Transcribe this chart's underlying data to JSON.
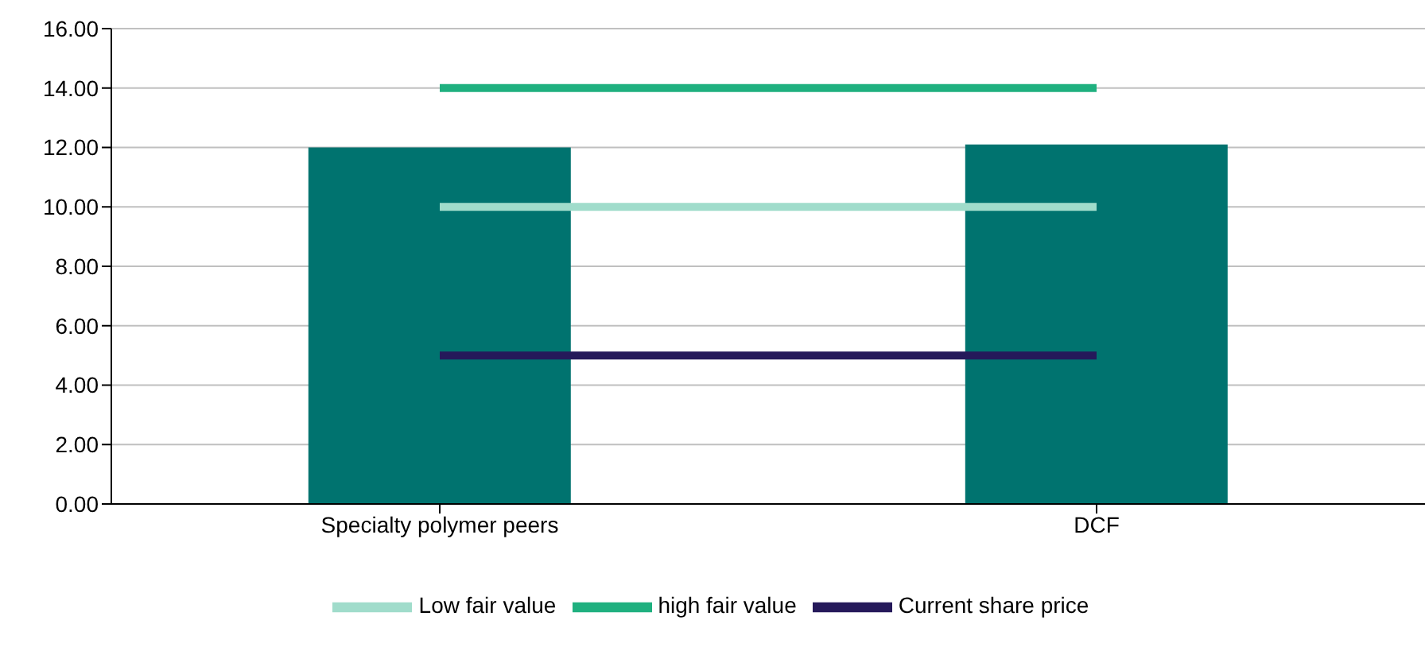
{
  "chart_data": {
    "type": "bar",
    "categories": [
      "Specialty polymer peers",
      "DCF"
    ],
    "series": [
      {
        "color": "#00736f",
        "values": [
          12.0,
          12.1
        ]
      },
      {
        "type": "line",
        "name": "Low fair value",
        "color": "#a0dccb",
        "values": [
          10,
          10
        ]
      },
      {
        "type": "line",
        "name": "high fair value",
        "color": "#1fb07f",
        "values": [
          14,
          14
        ]
      },
      {
        "type": "line",
        "name": "Current share price",
        "color": "#25195a",
        "values": [
          5,
          5
        ]
      }
    ],
    "ylim": [
      0,
      16
    ],
    "yticks": [
      {
        "value": 0,
        "label": "0.00"
      },
      {
        "value": 2,
        "label": "2.00"
      },
      {
        "value": 4,
        "label": "4.00"
      },
      {
        "value": 6,
        "label": "6.00"
      },
      {
        "value": 8,
        "label": "8.00"
      },
      {
        "value": 10,
        "label": "10.00"
      },
      {
        "value": 12,
        "label": "12.00"
      },
      {
        "value": 14,
        "label": "14.00"
      },
      {
        "value": 16,
        "label": "16.00"
      }
    ],
    "grid": "y",
    "legend": "bottom",
    "marker": "none"
  }
}
